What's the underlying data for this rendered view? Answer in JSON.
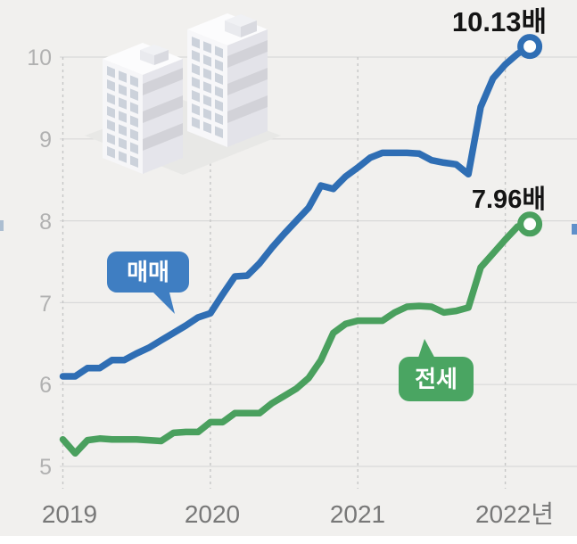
{
  "panel": {
    "description": "Housing price-to-income multiple line chart, sale vs jeonse, 2019-2022"
  },
  "legend": {
    "sale_label": "매매",
    "jeonse_label": "전세"
  },
  "colors": {
    "background": "#f1f0ee",
    "sale_line": "#2f6eb4",
    "sale_bubble": "#3f7ec2",
    "jeonse_line": "#4aa05e",
    "jeonse_bubble": "#4aa562",
    "h_gridline": "#d9d9d9",
    "v_gridline": "#c6c6c6",
    "ytick_text": "#b1b1b1",
    "xtick_text": "#787878",
    "annotation_text": "#141414"
  },
  "chart_data": {
    "type": "line",
    "title": "",
    "xlabel": "",
    "ylabel": "",
    "yticks": [
      10,
      9,
      8,
      7,
      6,
      5
    ],
    "ylim": [
      4.8,
      10.5
    ],
    "xtick_labels": [
      "2019",
      "2020",
      "2021",
      "2022년"
    ],
    "xtick_month_index": [
      0,
      12,
      24,
      36
    ],
    "grid": "horizontal solid gray lines at integers 5-10, vertical dashed gray lines at each year tick",
    "legend_position": "speech bubbles attached to each line (매매 upper-left of blue line, 전세 below green line)",
    "x_months": [
      "2019-01",
      "2019-02",
      "2019-03",
      "2019-04",
      "2019-05",
      "2019-06",
      "2019-07",
      "2019-08",
      "2019-09",
      "2019-10",
      "2019-11",
      "2019-12",
      "2020-01",
      "2020-02",
      "2020-03",
      "2020-04",
      "2020-05",
      "2020-06",
      "2020-07",
      "2020-08",
      "2020-09",
      "2020-10",
      "2020-11",
      "2020-12",
      "2021-01",
      "2021-02",
      "2021-03",
      "2021-04",
      "2021-05",
      "2021-06",
      "2021-07",
      "2021-08",
      "2021-09",
      "2021-10",
      "2021-11",
      "2021-12",
      "2022-01",
      "2022-02",
      "2022-03"
    ],
    "series": [
      {
        "name": "매매",
        "values": [
          6.1,
          6.1,
          6.2,
          6.2,
          6.3,
          6.3,
          6.38,
          6.45,
          6.54,
          6.63,
          6.72,
          6.82,
          6.87,
          7.1,
          7.32,
          7.33,
          7.48,
          7.67,
          7.84,
          8.0,
          8.16,
          8.43,
          8.39,
          8.54,
          8.65,
          8.77,
          8.83,
          8.83,
          8.83,
          8.82,
          8.74,
          8.71,
          8.69,
          8.57,
          9.39,
          9.74,
          9.91,
          10.04,
          10.13
        ]
      },
      {
        "name": "전세",
        "values": [
          5.33,
          5.16,
          5.32,
          5.34,
          5.33,
          5.33,
          5.33,
          5.32,
          5.31,
          5.41,
          5.42,
          5.42,
          5.54,
          5.54,
          5.65,
          5.65,
          5.65,
          5.77,
          5.86,
          5.95,
          6.08,
          6.3,
          6.63,
          6.74,
          6.78,
          6.78,
          6.78,
          6.88,
          6.95,
          6.96,
          6.95,
          6.88,
          6.9,
          6.94,
          7.43,
          7.6,
          7.77,
          7.93,
          7.96
        ]
      }
    ],
    "final_values": {
      "sale": 10.13,
      "jeonse": 7.96
    },
    "final_labels": {
      "sale": "10.13배",
      "jeonse": "7.96배"
    }
  }
}
